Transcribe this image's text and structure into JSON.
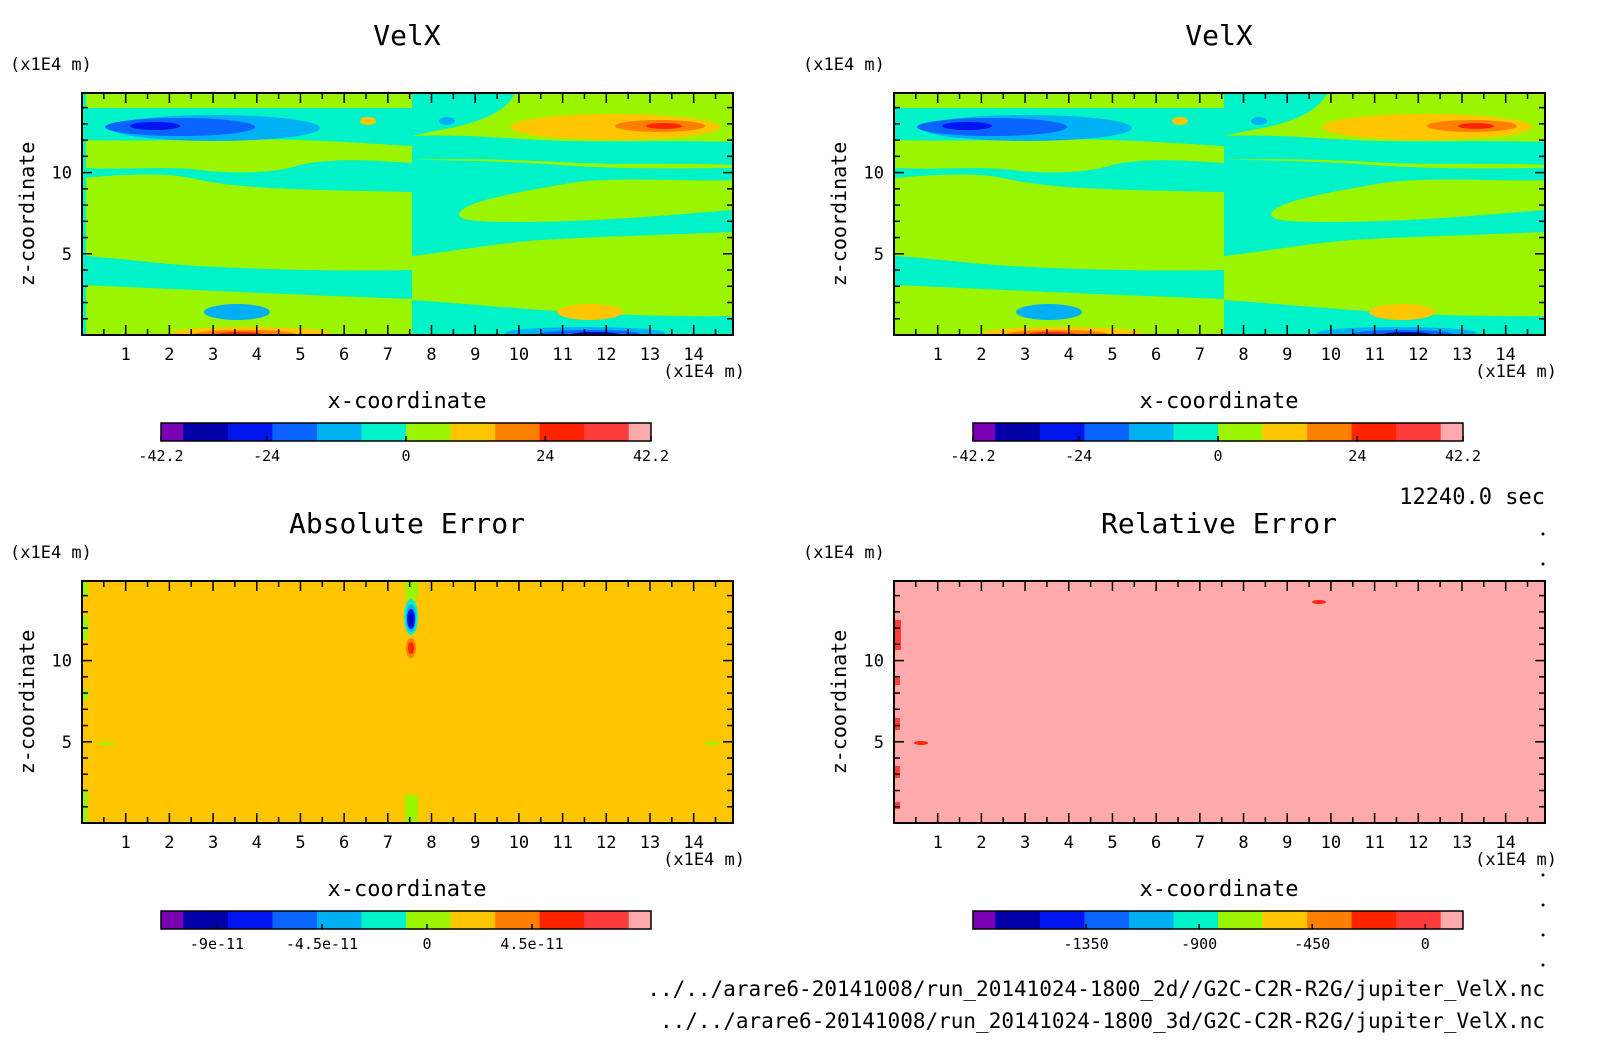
{
  "colors": {
    "velx": [
      "#7a00b5",
      "#0000a8",
      "#0014f0",
      "#0a64ff",
      "#00b0f5",
      "#00f2c8",
      "#9cf500",
      "#ffc600",
      "#ff7f00",
      "#ff2400",
      "#ff3c3c",
      "#ffaaaa"
    ],
    "abs": [
      "#7a00b5",
      "#0000a8",
      "#0014f0",
      "#0a64ff",
      "#00b0f5",
      "#00f2c8",
      "#9cf500",
      "#ffc600",
      "#ff7f00",
      "#ff2400",
      "#ff3c3c",
      "#ffaaaa"
    ],
    "rel": [
      "#7a00b5",
      "#0000a8",
      "#0014f0",
      "#0a64ff",
      "#00b0f5",
      "#00f2c8",
      "#9cf500",
      "#ffc600",
      "#ff7f00",
      "#ff2400",
      "#ff3c3c",
      "#ffaaaa"
    ]
  },
  "chart_data": [
    {
      "type": "heatmap",
      "title": "VelX",
      "xlabel": "x-coordinate",
      "ylabel": "z-coordinate",
      "x_unit": "(x1E4 m)",
      "y_unit": "(x1E4 m)",
      "xlim": [
        0,
        14.9
      ],
      "ylim": [
        0,
        14.9
      ],
      "xticks": [
        "1",
        "2",
        "3",
        "4",
        "5",
        "6",
        "7",
        "8",
        "9",
        "10",
        "11",
        "12",
        "13",
        "14"
      ],
      "yticks": [
        "5",
        "10"
      ],
      "colorbar": {
        "ticks": [
          {
            "v": -42.2,
            "label": "-42.2"
          },
          {
            "v": -24,
            "label": "-24"
          },
          {
            "v": 0,
            "label": "0"
          },
          {
            "v": 24,
            "label": "24"
          },
          {
            "v": 42.2,
            "label": "42.2"
          }
        ],
        "min": -42.2,
        "max": 42.2
      }
    },
    {
      "type": "heatmap",
      "title": "VelX",
      "xlabel": "x-coordinate",
      "ylabel": "z-coordinate",
      "x_unit": "(x1E4 m)",
      "y_unit": "(x1E4 m)",
      "xlim": [
        0,
        14.9
      ],
      "ylim": [
        0,
        14.9
      ],
      "xticks": [
        "1",
        "2",
        "3",
        "4",
        "5",
        "6",
        "7",
        "8",
        "9",
        "10",
        "11",
        "12",
        "13",
        "14"
      ],
      "yticks": [
        "5",
        "10"
      ],
      "colorbar": {
        "ticks": [
          {
            "v": -42.2,
            "label": "-42.2"
          },
          {
            "v": -24,
            "label": "-24"
          },
          {
            "v": 0,
            "label": "0"
          },
          {
            "v": 24,
            "label": "24"
          },
          {
            "v": 42.2,
            "label": "42.2"
          }
        ],
        "min": -42.2,
        "max": 42.2
      }
    },
    {
      "type": "heatmap",
      "title": "Absolute Error",
      "xlabel": "x-coordinate",
      "ylabel": "z-coordinate",
      "x_unit": "(x1E4 m)",
      "y_unit": "(x1E4 m)",
      "xlim": [
        0,
        14.9
      ],
      "ylim": [
        0,
        14.9
      ],
      "xticks": [
        "1",
        "2",
        "3",
        "4",
        "5",
        "6",
        "7",
        "8",
        "9",
        "10",
        "11",
        "12",
        "13",
        "14"
      ],
      "yticks": [
        "5",
        "10"
      ],
      "colorbar": {
        "ticks": [
          {
            "v": -9e-11,
            "label": "-9e-11"
          },
          {
            "v": -4.5e-11,
            "label": "-4.5e-11"
          },
          {
            "v": 0,
            "label": "0"
          },
          {
            "v": 4.5e-11,
            "label": "4.5e-11"
          }
        ],
        "min": -1.14e-10,
        "max": 9.6e-11
      }
    },
    {
      "type": "heatmap",
      "title": "Relative Error",
      "xlabel": "x-coordinate",
      "ylabel": "z-coordinate",
      "x_unit": "(x1E4 m)",
      "y_unit": "(x1E4 m)",
      "xlim": [
        0,
        14.9
      ],
      "ylim": [
        0,
        14.9
      ],
      "xticks": [
        "1",
        "2",
        "3",
        "4",
        "5",
        "6",
        "7",
        "8",
        "9",
        "10",
        "11",
        "12",
        "13",
        "14"
      ],
      "yticks": [
        "5",
        "10"
      ],
      "colorbar": {
        "ticks": [
          {
            "v": -1350,
            "label": "-1350"
          },
          {
            "v": -900,
            "label": "-900"
          },
          {
            "v": -450,
            "label": "-450"
          },
          {
            "v": 0,
            "label": "0"
          }
        ],
        "min": -1800,
        "max": 150
      }
    }
  ],
  "time_label": "12240.0 sec",
  "files": [
    "../../arare6-20141008/run_20141024-1800_2d//G2C-C2R-R2G/jupiter_VelX.nc",
    "../../arare6-20141008/run_20141024-1800_3d/G2C-C2R-R2G/jupiter_VelX.nc"
  ]
}
